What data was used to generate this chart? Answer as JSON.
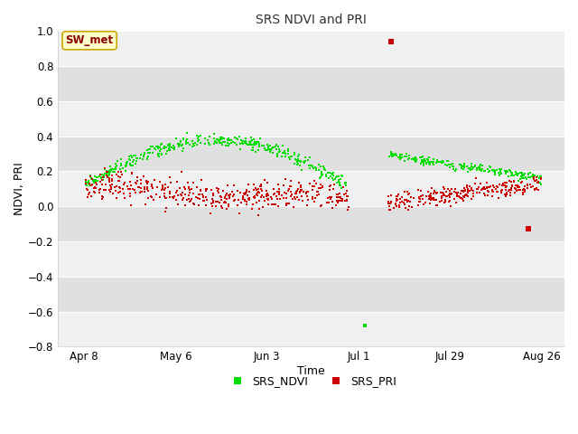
{
  "title": "SRS NDVI and PRI",
  "xlabel": "Time",
  "ylabel": "NDVI, PRI",
  "ylim": [
    -0.8,
    1.0
  ],
  "yticks": [
    -0.8,
    -0.6,
    -0.4,
    -0.2,
    0.0,
    0.2,
    0.4,
    0.6,
    0.8,
    1.0
  ],
  "xtick_labels": [
    "Apr 8",
    "May 6",
    "Jun 3",
    "Jul 1",
    "Jul 29",
    "Aug 26"
  ],
  "xtick_days": [
    98,
    126,
    154,
    182,
    210,
    238
  ],
  "xlim": [
    90,
    245
  ],
  "fig_facecolor": "#ffffff",
  "plot_bg_light": "#f0f0f0",
  "plot_bg_dark": "#e0e0e0",
  "ndvi_color": "#00dd00",
  "pri_color": "#cc0000",
  "marker_size": 4,
  "annotation_text": "SW_met",
  "annotation_color": "#8b0000",
  "annotation_bg": "#ffffcc",
  "annotation_border": "#c8a800",
  "grid_color": "#ffffff",
  "title_color": "#333333"
}
